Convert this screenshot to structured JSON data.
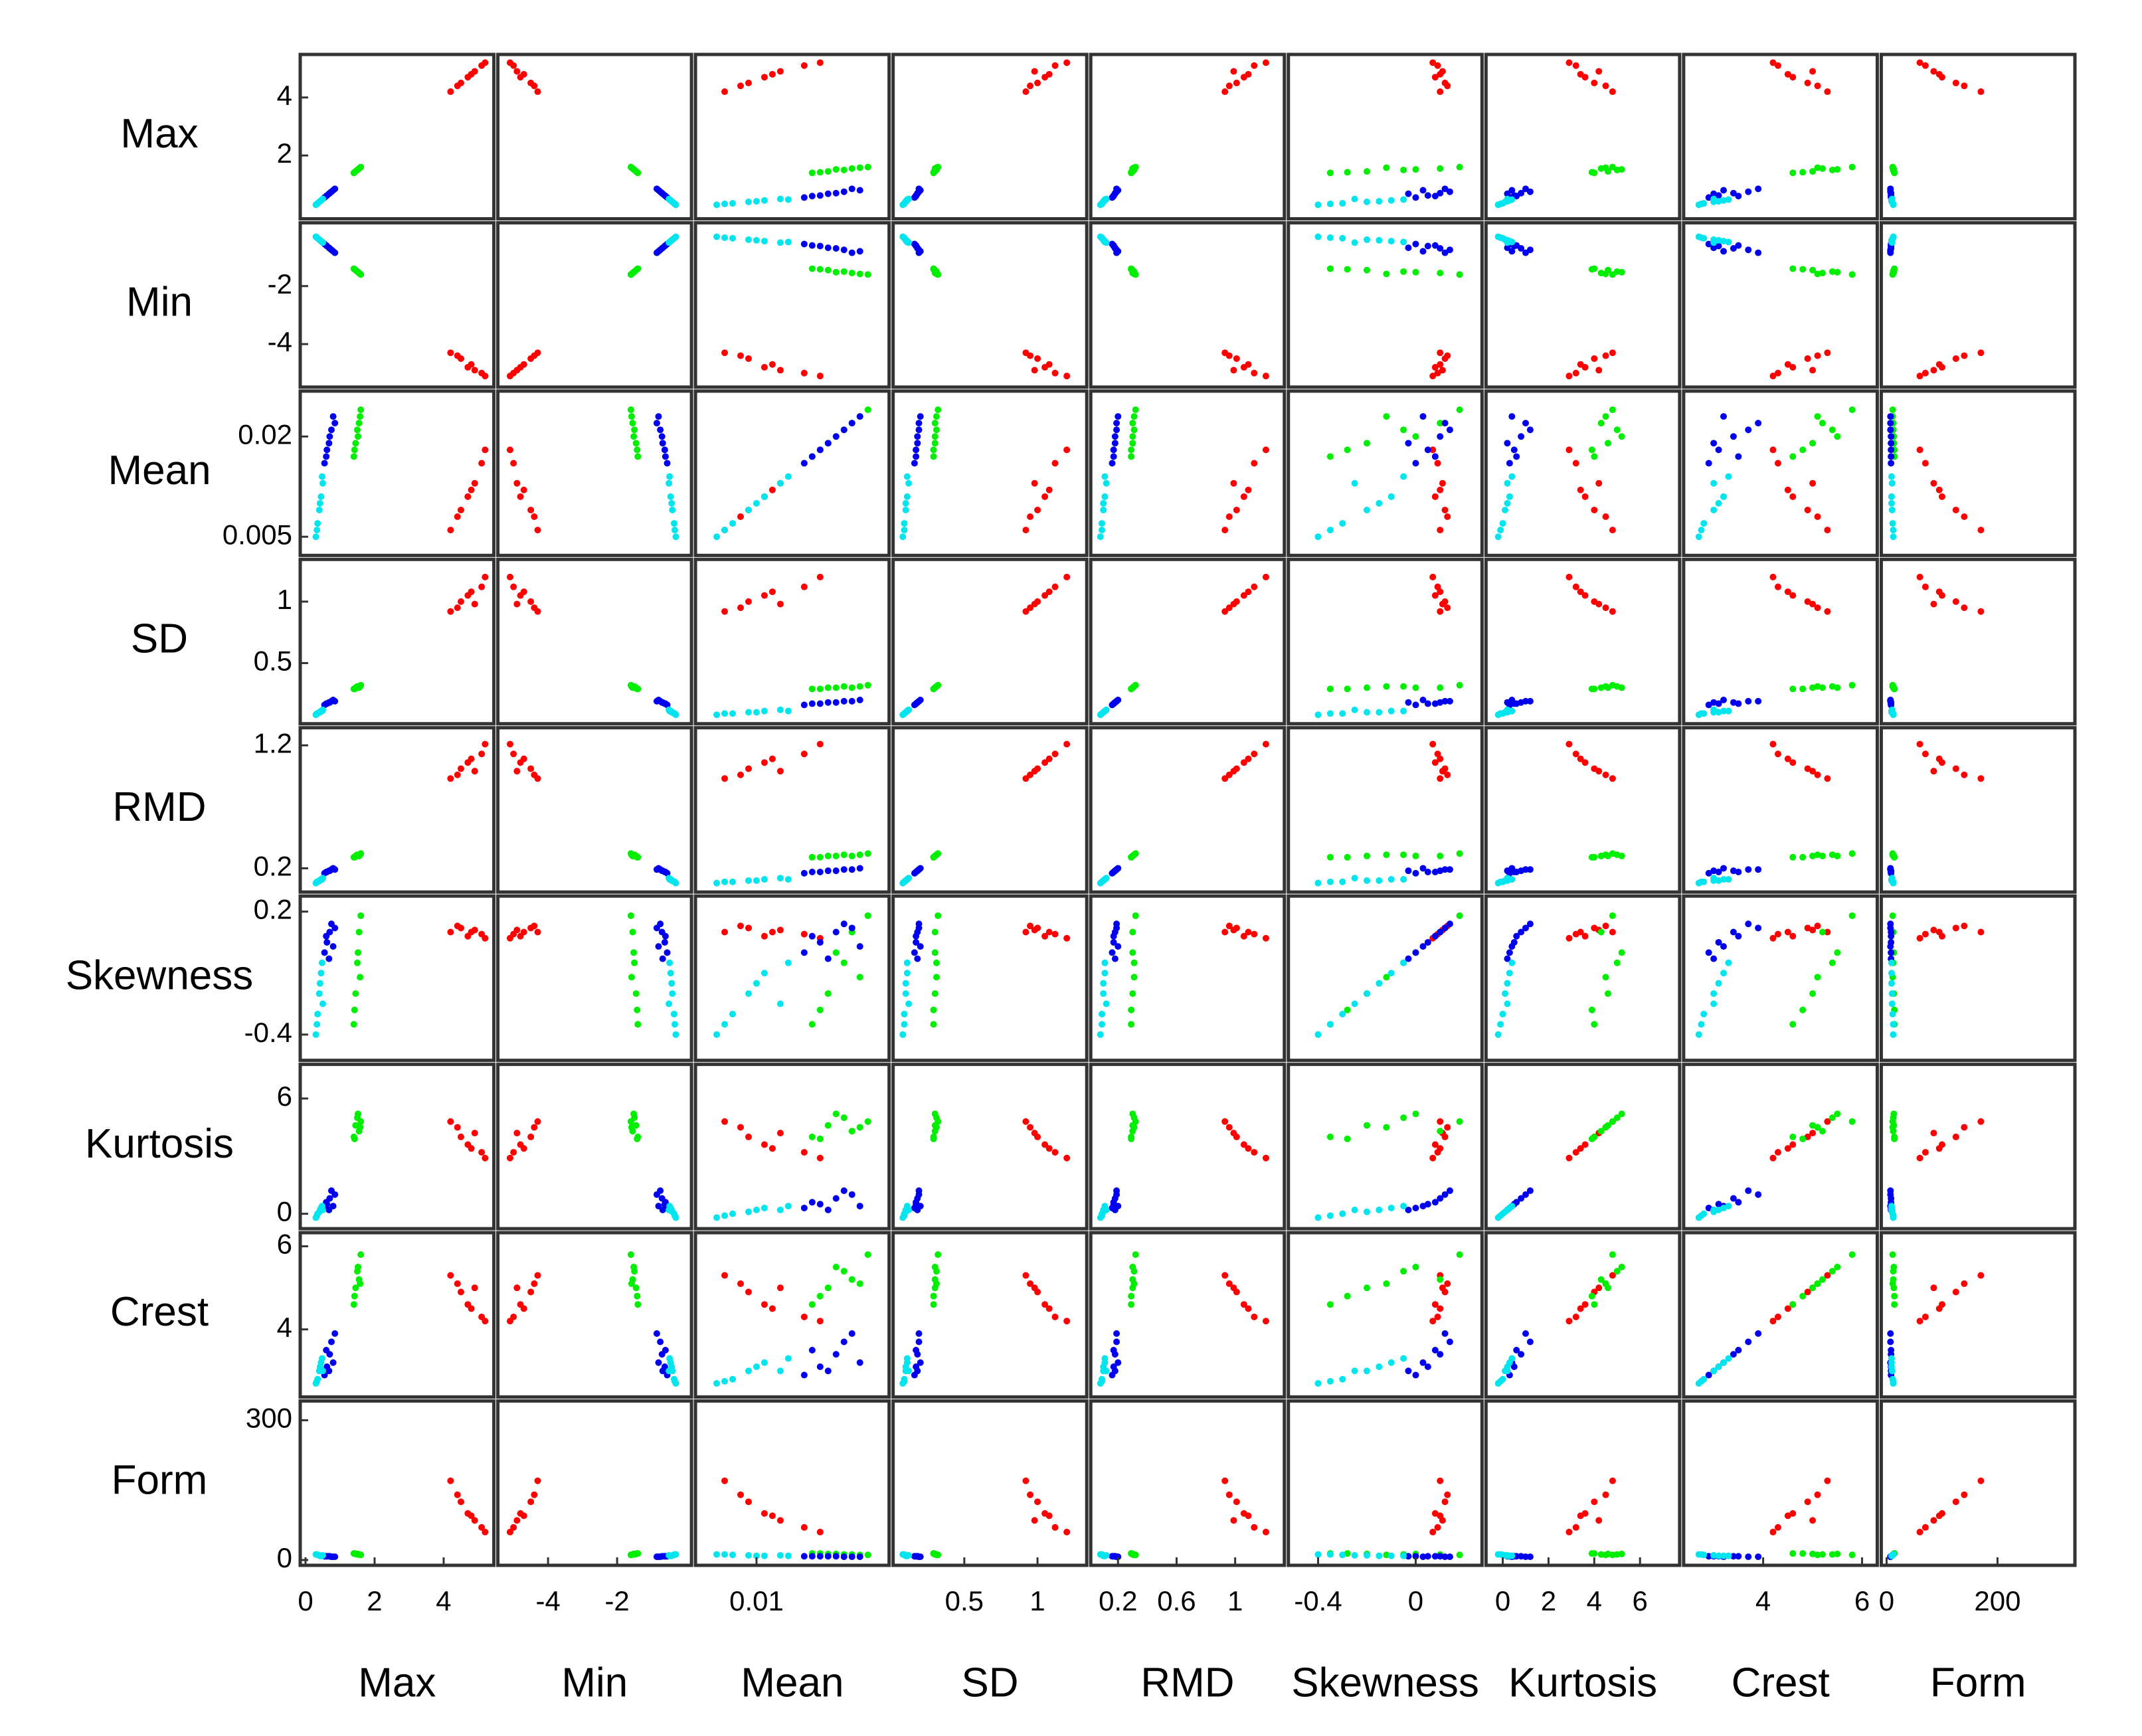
{
  "chart_data": {
    "type": "scatter_matrix",
    "variables": [
      {
        "name": "Max",
        "lim": [
          0,
          5.3
        ],
        "xticks": [
          0,
          2,
          4
        ],
        "yticks": [
          2,
          4
        ]
      },
      {
        "name": "Min",
        "lim": [
          -5.3,
          0
        ],
        "xticks": [
          -4,
          -2
        ],
        "yticks": [
          -2,
          -4
        ]
      },
      {
        "name": "Mean",
        "lim": [
          0.003,
          0.026
        ],
        "xticks": [
          0.01
        ],
        "yticks": [
          0.02,
          0.005
        ]
      },
      {
        "name": "SD",
        "lim": [
          0.05,
          1.3
        ],
        "xticks": [
          0.5,
          1
        ],
        "yticks": [
          1,
          0.5
        ]
      },
      {
        "name": "RMD",
        "lim": [
          0.05,
          1.3
        ],
        "xticks": [
          0.2,
          0.6,
          1
        ],
        "yticks": [
          1.2,
          0.2
        ]
      },
      {
        "name": "Skewness",
        "lim": [
          -0.5,
          0.25
        ],
        "xticks": [
          -0.4,
          0
        ],
        "yticks": [
          0.2,
          -0.4
        ]
      },
      {
        "name": "Kurtosis",
        "lim": [
          -0.5,
          7.5
        ],
        "xticks": [
          0,
          2,
          4,
          6
        ],
        "yticks": [
          6,
          0
        ]
      },
      {
        "name": "Crest",
        "lim": [
          2.5,
          6.2
        ],
        "xticks": [
          4,
          6
        ],
        "yticks": [
          6,
          4
        ]
      },
      {
        "name": "Form",
        "lim": [
          0,
          330
        ],
        "xticks": [
          0,
          200
        ],
        "yticks": [
          300,
          0
        ]
      }
    ],
    "series": [
      {
        "color": "#ff0000",
        "values": [
          [
            4.2,
            4.5,
            4.7,
            4.9,
            5.1,
            4.4,
            4.8,
            5.2
          ],
          [
            -4.3,
            -4.5,
            -4.8,
            -4.9,
            -5.0,
            -4.4,
            -4.7,
            -5.1
          ],
          [
            0.006,
            0.009,
            0.011,
            0.013,
            0.016,
            0.008,
            0.012,
            0.018
          ],
          [
            0.92,
            1.0,
            1.05,
            0.98,
            1.12,
            0.95,
            1.08,
            1.2
          ],
          [
            0.93,
            1.01,
            1.06,
            0.99,
            1.13,
            0.96,
            1.09,
            1.21
          ],
          [
            0.1,
            0.12,
            0.08,
            0.11,
            0.09,
            0.13,
            0.1,
            0.07
          ],
          [
            4.8,
            4.0,
            3.6,
            4.2,
            3.2,
            4.5,
            3.4,
            2.9
          ],
          [
            5.3,
            4.9,
            4.6,
            5.0,
            4.3,
            5.1,
            4.5,
            4.2
          ],
          [
            170,
            125,
            100,
            85,
            70,
            140,
            95,
            60
          ]
        ]
      },
      {
        "color": "#00ee00",
        "values": [
          [
            1.4,
            1.45,
            1.5,
            1.55,
            1.6,
            1.42,
            1.52,
            1.58
          ],
          [
            -1.4,
            -1.45,
            -1.5,
            -1.55,
            -1.6,
            -1.42,
            -1.52,
            -1.58
          ],
          [
            0.017,
            0.019,
            0.021,
            0.022,
            0.024,
            0.018,
            0.02,
            0.023
          ],
          [
            0.29,
            0.3,
            0.31,
            0.3,
            0.32,
            0.29,
            0.3,
            0.31
          ],
          [
            0.29,
            0.3,
            0.31,
            0.3,
            0.32,
            0.29,
            0.3,
            0.31
          ],
          [
            -0.35,
            -0.2,
            -0.05,
            0.1,
            0.18,
            -0.28,
            0.0,
            -0.12
          ],
          [
            4.0,
            4.6,
            5.0,
            4.3,
            4.8,
            3.9,
            5.2,
            4.5
          ],
          [
            4.6,
            5.0,
            5.4,
            5.2,
            5.8,
            4.8,
            5.5,
            5.1
          ],
          [
            14,
            13,
            12,
            12,
            11,
            14,
            13,
            11
          ]
        ]
      },
      {
        "color": "#0000ee",
        "values": [
          [
            0.55,
            0.62,
            0.7,
            0.75,
            0.8,
            0.6,
            0.68,
            0.85
          ],
          [
            -0.55,
            -0.62,
            -0.7,
            -0.75,
            -0.8,
            -0.6,
            -0.68,
            -0.85
          ],
          [
            0.016,
            0.018,
            0.02,
            0.021,
            0.023,
            0.017,
            0.019,
            0.022
          ],
          [
            0.16,
            0.17,
            0.18,
            0.19,
            0.2,
            0.17,
            0.18,
            0.19
          ],
          [
            0.16,
            0.17,
            0.18,
            0.19,
            0.2,
            0.17,
            0.18,
            0.19
          ],
          [
            0.0,
            0.05,
            0.1,
            0.14,
            0.03,
            0.08,
            -0.03,
            0.12
          ],
          [
            0.3,
            0.5,
            0.8,
            1.2,
            0.4,
            0.6,
            0.2,
            1.0
          ],
          [
            2.9,
            3.1,
            3.4,
            3.7,
            3.2,
            3.5,
            3.0,
            3.9
          ],
          [
            8,
            8,
            8,
            7,
            7,
            8,
            8,
            7
          ]
        ]
      },
      {
        "color": "#00e5ee",
        "values": [
          [
            0.3,
            0.35,
            0.4,
            0.45,
            0.5,
            0.33,
            0.42,
            0.48
          ],
          [
            -0.3,
            -0.35,
            -0.4,
            -0.45,
            -0.5,
            -0.33,
            -0.42,
            -0.48
          ],
          [
            0.005,
            0.007,
            0.009,
            0.011,
            0.013,
            0.006,
            0.01,
            0.014
          ],
          [
            0.08,
            0.09,
            0.1,
            0.11,
            0.12,
            0.09,
            0.1,
            0.11
          ],
          [
            0.08,
            0.09,
            0.1,
            0.11,
            0.12,
            0.09,
            0.1,
            0.11
          ],
          [
            -0.4,
            -0.3,
            -0.2,
            -0.1,
            -0.25,
            -0.35,
            -0.15,
            -0.05
          ],
          [
            -0.2,
            0.0,
            0.1,
            0.3,
            0.2,
            -0.1,
            0.2,
            0.4
          ],
          [
            2.7,
            2.8,
            3.0,
            3.2,
            3.0,
            2.75,
            3.1,
            3.3
          ],
          [
            12,
            11,
            10,
            9,
            10,
            12,
            9,
            9
          ]
        ]
      }
    ]
  }
}
